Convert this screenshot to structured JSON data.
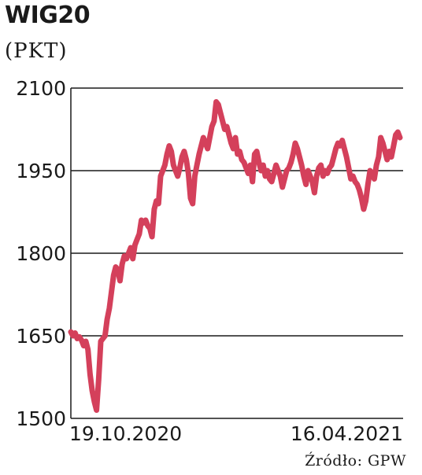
{
  "header": {
    "title": "WIG20",
    "unit": "(PKT)",
    "source": "Źródło: GPW"
  },
  "chart_data": {
    "type": "line",
    "ylim": [
      1500,
      2100
    ],
    "yticks": [
      2100,
      1950,
      1800,
      1650,
      1500
    ],
    "xtick_labels": [
      "19.10.2020",
      "16.04.2021"
    ],
    "color": "#d4405b",
    "grid": true,
    "series": [
      {
        "values": [
          1657,
          1650,
          1655,
          1645,
          1648,
          1642,
          1632,
          1640,
          1625,
          1580,
          1550,
          1530,
          1515,
          1570,
          1640,
          1645,
          1650,
          1680,
          1700,
          1730,
          1760,
          1775,
          1770,
          1750,
          1780,
          1795,
          1790,
          1800,
          1810,
          1790,
          1815,
          1825,
          1835,
          1860,
          1855,
          1860,
          1850,
          1845,
          1830,
          1880,
          1895,
          1890,
          1940,
          1950,
          1960,
          1980,
          1995,
          1985,
          1960,
          1950,
          1940,
          1955,
          1975,
          1985,
          1970,
          1945,
          1900,
          1890,
          1940,
          1960,
          1980,
          1995,
          2010,
          2000,
          1990,
          2010,
          2030,
          2040,
          2075,
          2070,
          2055,
          2040,
          2025,
          2030,
          2015,
          2000,
          1990,
          2010,
          1980,
          1985,
          1970,
          1965,
          1955,
          1945,
          1960,
          1930,
          1980,
          1985,
          1965,
          1950,
          1960,
          1940,
          1950,
          1935,
          1930,
          1945,
          1960,
          1950,
          1940,
          1920,
          1935,
          1950,
          1955,
          1965,
          1980,
          2000,
          1990,
          1975,
          1960,
          1940,
          1925,
          1950,
          1940,
          1930,
          1910,
          1940,
          1955,
          1960,
          1940,
          1950,
          1945,
          1955,
          1960,
          1975,
          1990,
          2000,
          1995,
          2005,
          1990,
          1975,
          1955,
          1935,
          1940,
          1930,
          1925,
          1915,
          1900,
          1880,
          1895,
          1925,
          1950,
          1945,
          1935,
          1960,
          1975,
          2010,
          2000,
          1985,
          1970,
          1985,
          1975,
          1995,
          2015,
          2020,
          2010
        ]
      }
    ]
  }
}
